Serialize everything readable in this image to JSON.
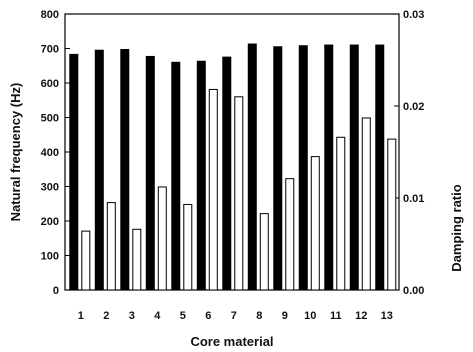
{
  "chart_data": {
    "type": "bar",
    "categories": [
      "1",
      "2",
      "3",
      "4",
      "5",
      "6",
      "7",
      "8",
      "9",
      "10",
      "11",
      "12",
      "13"
    ],
    "xlabel": "Core material",
    "ylabel": "Natural frequency (Hz)",
    "y2label": "Damping ratio",
    "ylim": [
      0,
      800
    ],
    "y2lim": [
      0,
      0.03
    ],
    "yticks": [
      0,
      100,
      200,
      300,
      400,
      500,
      600,
      700,
      800
    ],
    "y2ticks": [
      "0.00",
      "0.01",
      "0.02",
      "0.03"
    ],
    "y2tick_values": [
      0,
      0.01,
      0.02,
      0.03
    ],
    "grid": false,
    "series": [
      {
        "axis": "left",
        "fill": "#000000",
        "values": [
          683,
          695,
          697,
          677,
          660,
          663,
          675,
          713,
          705,
          708,
          710,
          710,
          710
        ]
      },
      {
        "axis": "right",
        "fill": "#ffffff",
        "values": [
          0.0064,
          0.0095,
          0.0066,
          0.0112,
          0.0093,
          0.0218,
          0.021,
          0.0083,
          0.0121,
          0.0145,
          0.0166,
          0.0187,
          0.0164
        ]
      }
    ]
  }
}
